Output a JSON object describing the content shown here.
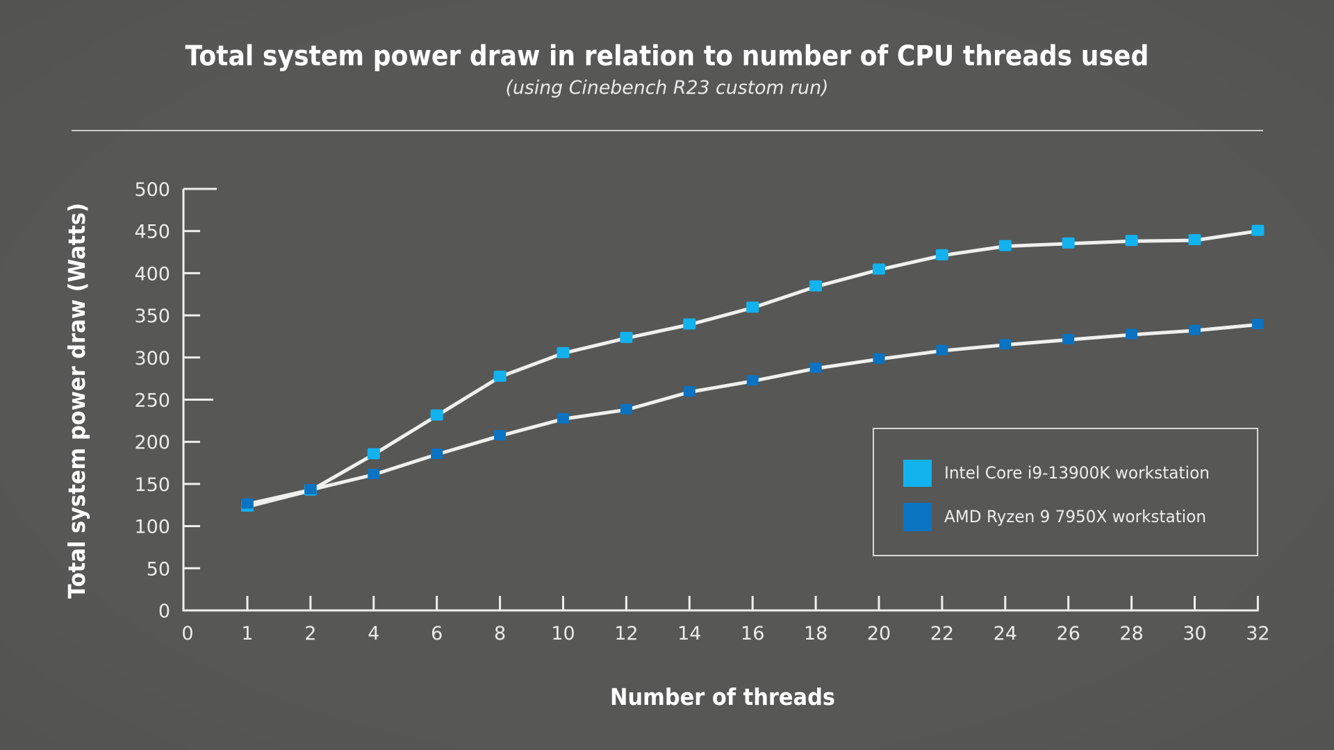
{
  "chart_data": {
    "type": "line",
    "title": "Total system power draw in relation to number of CPU threads used",
    "subtitle": "(using Cinebench R23 custom run)",
    "xlabel": "Number of threads",
    "ylabel": "Total system power draw (Watts)",
    "x_scale": "categorical",
    "x_tick_labels": [
      "0",
      "1",
      "2",
      "4",
      "6",
      "8",
      "10",
      "12",
      "14",
      "16",
      "18",
      "20",
      "22",
      "24",
      "26",
      "28",
      "30",
      "32"
    ],
    "x": [
      1,
      2,
      4,
      6,
      8,
      10,
      12,
      14,
      16,
      18,
      20,
      22,
      24,
      26,
      28,
      30,
      32
    ],
    "ylim": [
      0,
      500
    ],
    "y_ticks": [
      0,
      50,
      100,
      150,
      200,
      250,
      300,
      350,
      400,
      450,
      500
    ],
    "grid": false,
    "legend_position": "bottom-right",
    "series": [
      {
        "name": "Intel Core i9-13900K workstation",
        "color": "#12b2ee",
        "values": [
          123,
          142,
          185,
          231,
          277,
          305,
          323,
          339,
          359,
          384,
          404,
          421,
          432,
          435,
          438,
          439,
          450
        ]
      },
      {
        "name": "AMD Ryzen 9 7950X workstation",
        "color": "#0a73c2",
        "values": [
          126,
          143,
          161,
          185,
          207,
          227,
          238,
          259,
          272,
          287,
          298,
          308,
          315,
          321,
          327,
          332,
          339
        ]
      }
    ]
  },
  "colors": {
    "background": "#575755",
    "line": "#f0f0ee",
    "axis": "#f0f0f0"
  }
}
